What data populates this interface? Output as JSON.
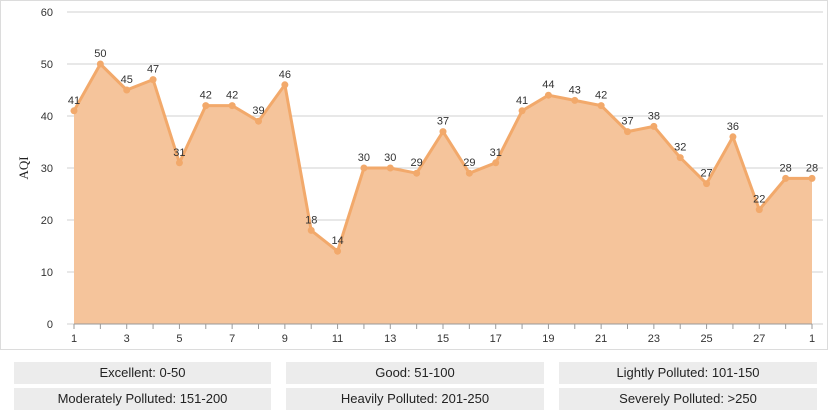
{
  "chart_data": {
    "type": "area",
    "title": "",
    "xlabel": "",
    "ylabel": "AQI",
    "ylim": [
      0,
      60
    ],
    "yticks": [
      0,
      10,
      20,
      30,
      40,
      50,
      60
    ],
    "x": [
      1,
      2,
      3,
      4,
      5,
      6,
      7,
      8,
      9,
      10,
      11,
      12,
      13,
      14,
      15,
      16,
      17,
      18,
      19,
      20,
      21,
      22,
      23,
      24,
      25,
      26,
      27,
      28,
      1
    ],
    "xtick_labels": [
      "1",
      "",
      "3",
      "",
      "5",
      "",
      "7",
      "",
      "9",
      "",
      "11",
      "",
      "13",
      "",
      "15",
      "",
      "17",
      "",
      "19",
      "",
      "21",
      "",
      "23",
      "",
      "25",
      "",
      "27",
      "",
      "1"
    ],
    "values": [
      41,
      50,
      45,
      47,
      31,
      42,
      42,
      39,
      46,
      18,
      14,
      30,
      30,
      29,
      37,
      29,
      31,
      41,
      44,
      43,
      42,
      37,
      38,
      32,
      27,
      36,
      22,
      28,
      28
    ],
    "grid": true,
    "legend": "none",
    "colors": {
      "line": "#f2a96b",
      "fill": "#f5c49b",
      "grid": "#d0d0d0",
      "axis": "#999999"
    }
  },
  "legend_boxes": [
    {
      "label": "Excellent: 0-50"
    },
    {
      "label": "Good: 51-100"
    },
    {
      "label": "Lightly Polluted: 101-150"
    },
    {
      "label": "Moderately Polluted: 151-200"
    },
    {
      "label": "Heavily Polluted: 201-250"
    },
    {
      "label": "Severely Polluted: >250"
    }
  ]
}
